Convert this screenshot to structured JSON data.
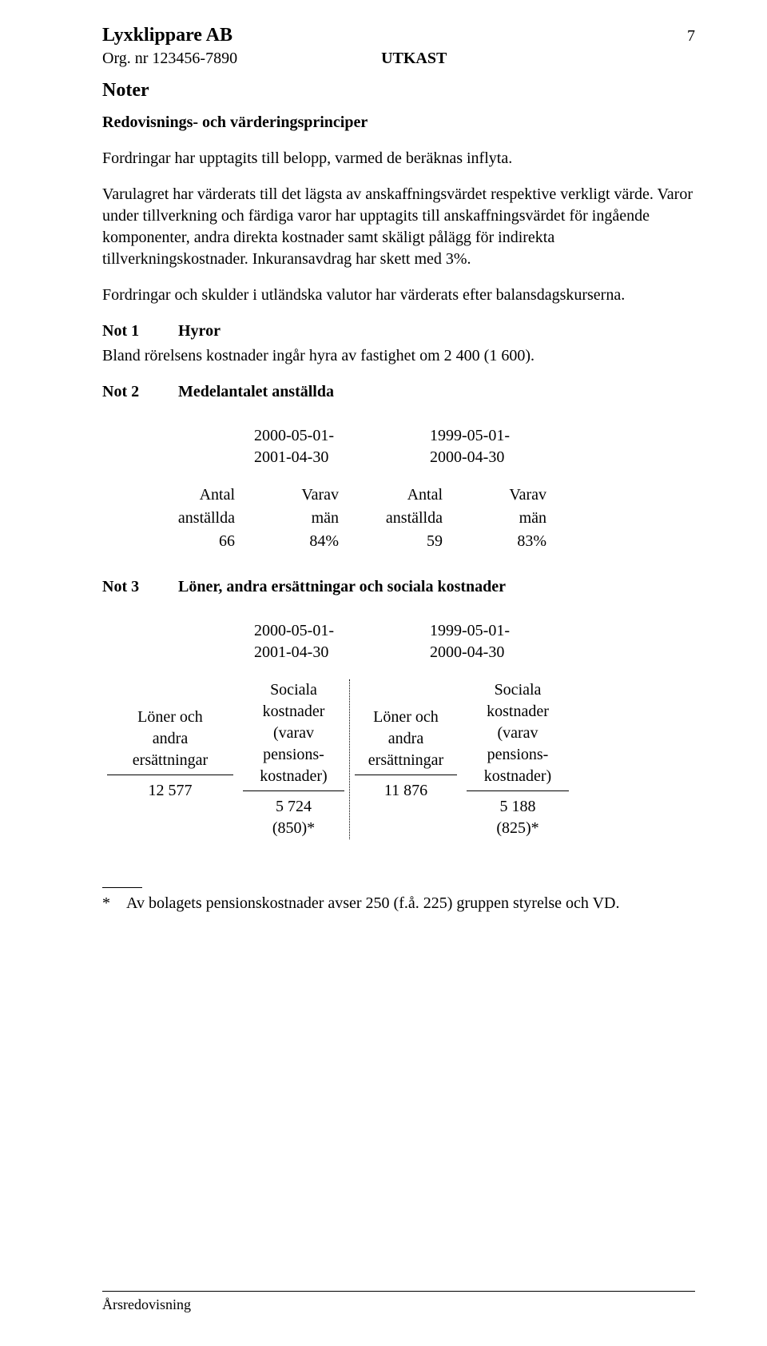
{
  "header": {
    "company": "Lyxklippare AB",
    "page_number": "7",
    "org_line": "Org. nr 123456-7890",
    "draft": "UTKAST",
    "noter": "Noter",
    "subheading": "Redovisnings- och värderingsprinciper"
  },
  "paragraphs": {
    "p1": "Fordringar har upptagits till belopp, varmed de beräknas inflyta.",
    "p2": "Varulagret har värderats till det lägsta av anskaffningsvärdet respektive verkligt värde. Varor under tillverkning och färdiga varor har upptagits till anskaffningsvärdet för ingående komponenter, andra direkta kostnader samt skäligt pålägg för indirekta tillverkningskostnader. Inkuransavdrag har skett med 3%.",
    "p3": "Fordringar och skulder i utländska valutor har värderats efter balansdagskurserna."
  },
  "not1": {
    "label": "Not 1",
    "title": "Hyror",
    "text": "Bland rörelsens kostnader ingår hyra av fastighet om 2 400 (1 600)."
  },
  "not2": {
    "label": "Not 2",
    "title": "Medelantalet anställda",
    "period1_line1": "2000-05-01-",
    "period1_line2": "2001-04-30",
    "period2_line1": "1999-05-01-",
    "period2_line2": "2000-04-30",
    "h_antal1": "Antal",
    "h_anst1": "anställda",
    "h_varav1": "Varav",
    "h_man1": "män",
    "h_antal2": "Antal",
    "h_anst2": "anställda",
    "h_varav2": "Varav",
    "h_man2": "män",
    "v1": "66",
    "v2": "84%",
    "v3": "59",
    "v4": "83%"
  },
  "not3": {
    "label": "Not 3",
    "title": "Löner, andra ersättningar och sociala kostnader",
    "period1_line1": "2000-05-01-",
    "period1_line2": "2001-04-30",
    "period2_line1": "1999-05-01-",
    "period2_line2": "2000-04-30",
    "col1_l1": "Löner och",
    "col1_l2": "andra",
    "col1_l3": "ersättningar",
    "col2_l1": "Sociala",
    "col2_l2": "kostnader",
    "col2_l3": "(varav",
    "col2_l4": "pensions-",
    "col2_l5": "kostnader)",
    "col3_l1": "Löner och",
    "col3_l2": "andra",
    "col3_l3": "ersättningar",
    "col4_l1": "Sociala",
    "col4_l2": "kostnader",
    "col4_l3": "(varav",
    "col4_l4": "pensions-",
    "col4_l5": "kostnader)",
    "r1c1": "12 577",
    "r1c2": "5 724",
    "r1c3": "11 876",
    "r1c4": "5 188",
    "r2c2": "(850)*",
    "r2c4": "(825)*"
  },
  "footnote": {
    "star": "*",
    "text": "Av bolagets pensionskostnader avser 250 (f.å. 225) gruppen styrelse och VD."
  },
  "footer": "Årsredovisning"
}
